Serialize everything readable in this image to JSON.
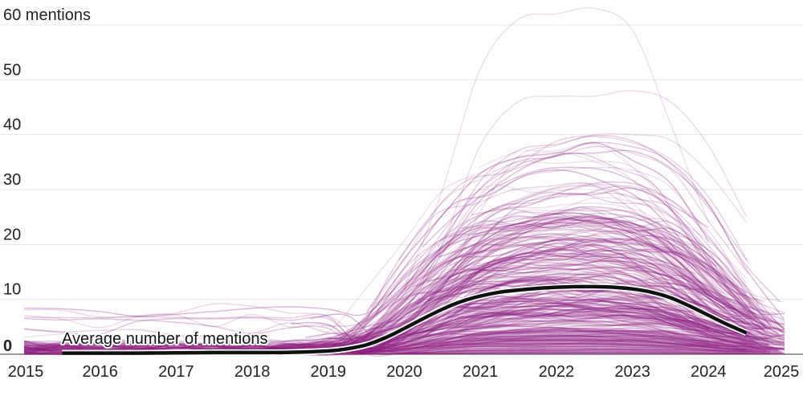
{
  "chart_data": {
    "type": "line",
    "title": "",
    "xlabel": "",
    "ylabel": "",
    "y_unit_label": "mentions",
    "xlim": [
      2015,
      2025
    ],
    "ylim": [
      0,
      60
    ],
    "x_ticks": [
      2015,
      2016,
      2017,
      2018,
      2019,
      2020,
      2021,
      2022,
      2023,
      2024,
      2025
    ],
    "x_tick_labels": [
      "2015",
      "2016",
      "2017",
      "2018",
      "2019",
      "2020",
      "2021",
      "2022",
      "2023",
      "2024",
      "2025"
    ],
    "y_ticks": [
      0,
      10,
      20,
      30,
      40,
      50,
      60
    ],
    "y_tick_labels": [
      "0",
      "10",
      "20",
      "30",
      "40",
      "50",
      "60 mentions"
    ],
    "grid": true,
    "colors": {
      "individual": "#8b1a7f",
      "average": "#111111",
      "grid": "#e6e6e6"
    },
    "individual_series_count": 300,
    "highlight_series": [
      {
        "x": [
          2020.0,
          2020.5,
          2021.0,
          2021.5,
          2022.0,
          2022.5,
          2023.0,
          2023.5,
          2024.0
        ],
        "y": [
          12,
          30,
          52,
          61,
          62,
          63,
          59,
          42,
          24
        ]
      },
      {
        "x": [
          2020.0,
          2020.5,
          2021.0,
          2021.5,
          2022.0,
          2022.5,
          2023.0,
          2023.5,
          2024.0,
          2024.5
        ],
        "y": [
          8,
          20,
          38,
          46,
          47,
          47,
          48,
          46,
          38,
          25
        ]
      },
      {
        "x": [
          2020.0,
          2020.5,
          2021.0,
          2021.5,
          2022.0,
          2022.5,
          2023.0,
          2023.5,
          2024.0,
          2024.5
        ],
        "y": [
          5,
          12,
          26,
          36,
          38,
          40,
          40,
          39,
          33,
          24
        ]
      }
    ],
    "series": [
      {
        "name": "Average number of mentions",
        "x": [
          2015.5,
          2016.0,
          2016.5,
          2017.0,
          2017.5,
          2018.0,
          2018.5,
          2019.0,
          2019.25,
          2019.5,
          2019.75,
          2020.0,
          2020.25,
          2020.5,
          2020.75,
          2021.0,
          2021.25,
          2021.5,
          2021.75,
          2022.0,
          2022.25,
          2022.5,
          2022.75,
          2023.0,
          2023.25,
          2023.5,
          2023.75,
          2024.0,
          2024.25,
          2024.5
        ],
        "y": [
          0.2,
          0.2,
          0.2,
          0.25,
          0.3,
          0.3,
          0.35,
          0.6,
          1.0,
          1.7,
          3.0,
          4.7,
          6.5,
          8.2,
          9.6,
          10.6,
          11.3,
          11.7,
          12.0,
          12.2,
          12.3,
          12.3,
          12.2,
          11.9,
          11.3,
          10.3,
          8.8,
          7.1,
          5.4,
          3.9
        ]
      }
    ],
    "annotations": [
      {
        "text": "Average number of mentions"
      }
    ]
  }
}
